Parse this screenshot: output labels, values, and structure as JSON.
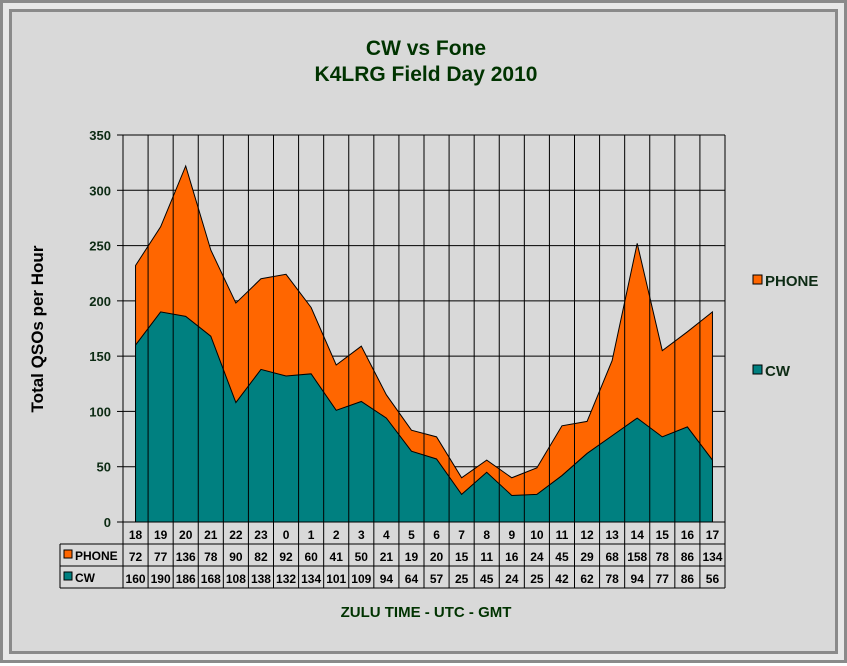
{
  "chart_data": {
    "type": "area",
    "stacked": true,
    "title": "CW   vs   Fone",
    "subtitle": "K4LRG Field Day 2010",
    "xlabel": "ZULU TIME  -  UTC  -  GMT",
    "ylabel": "Total QSOs per Hour",
    "ylim": [
      0,
      350
    ],
    "yticks": [
      0,
      50,
      100,
      150,
      200,
      250,
      300,
      350
    ],
    "grid": true,
    "legend_position": "right",
    "categories": [
      "18",
      "19",
      "20",
      "21",
      "22",
      "23",
      "0",
      "1",
      "2",
      "3",
      "4",
      "5",
      "6",
      "7",
      "8",
      "9",
      "10",
      "11",
      "12",
      "13",
      "14",
      "15",
      "16",
      "17"
    ],
    "series": [
      {
        "name": "CW",
        "color": "#008080",
        "values": [
          160,
          190,
          186,
          168,
          108,
          138,
          132,
          134,
          101,
          109,
          94,
          64,
          57,
          25,
          45,
          24,
          25,
          42,
          62,
          78,
          94,
          77,
          86,
          56
        ]
      },
      {
        "name": "PHONE",
        "color": "#ff6600",
        "values": [
          72,
          77,
          136,
          78,
          90,
          82,
          92,
          60,
          41,
          50,
          21,
          19,
          20,
          15,
          11,
          16,
          24,
          45,
          29,
          68,
          158,
          78,
          86,
          134
        ]
      }
    ]
  }
}
